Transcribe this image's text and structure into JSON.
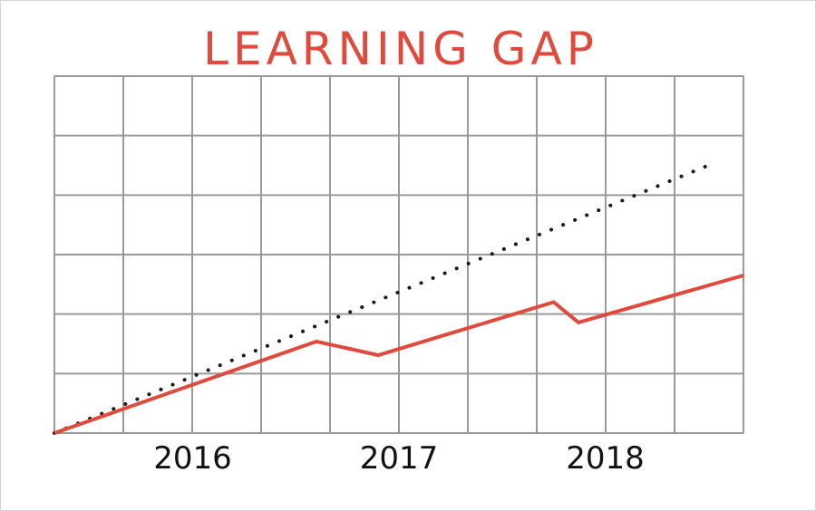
{
  "chart_data": {
    "type": "line",
    "title": "LEARNING GAP",
    "xlabel": "",
    "ylabel": "",
    "x_tick_labels": [
      "2016",
      "2017",
      "2018"
    ],
    "x_tick_values": [
      2016,
      2017,
      2018
    ],
    "xlim": [
      2015.33,
      2018.67
    ],
    "ylim": [
      0,
      6
    ],
    "grid": true,
    "legend": "none",
    "series": [
      {
        "style": "dotted",
        "color": "#1a1a1a",
        "points": [
          [
            2015.33,
            0
          ],
          [
            2018.5,
            4.5
          ]
        ]
      },
      {
        "style": "solid",
        "color": "#e04a3c",
        "points": [
          [
            2015.33,
            0
          ],
          [
            2016.6,
            1.54
          ],
          [
            2016.9,
            1.31
          ],
          [
            2017.75,
            2.2
          ],
          [
            2017.87,
            1.86
          ],
          [
            2018.67,
            2.65
          ]
        ]
      }
    ]
  },
  "colors": {
    "title": "#e04a3c",
    "grid": "#9a9a9a"
  }
}
